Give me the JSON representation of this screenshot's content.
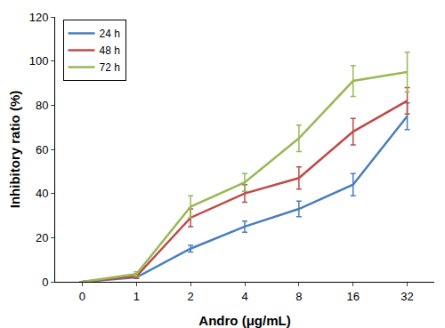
{
  "chart_data": {
    "type": "line",
    "x_label": "Andro (μg/mL)",
    "y_label": "Inhibitory ratio (%)",
    "categories": [
      "0",
      "1",
      "2",
      "4",
      "8",
      "16",
      "32"
    ],
    "series": [
      {
        "name": "24 h",
        "color": "#4a7ebb",
        "values": [
          0,
          2,
          15,
          25,
          33,
          44,
          75
        ],
        "errors": [
          0,
          0.5,
          1.5,
          2.5,
          3.5,
          5,
          6
        ]
      },
      {
        "name": "48 h",
        "color": "#be4b48",
        "values": [
          0,
          2.5,
          29,
          40,
          47,
          68,
          82
        ],
        "errors": [
          0,
          1,
          4,
          4,
          5,
          6,
          6
        ]
      },
      {
        "name": "72 h",
        "color": "#98b954",
        "values": [
          0,
          3.5,
          34,
          45,
          65,
          91,
          95
        ],
        "errors": [
          0,
          1,
          5,
          4,
          6,
          7,
          9
        ]
      }
    ],
    "ylim": [
      0,
      120
    ],
    "yticks": [
      0,
      20,
      40,
      60,
      80,
      100,
      120
    ],
    "grid": false,
    "legend": "upper left"
  }
}
